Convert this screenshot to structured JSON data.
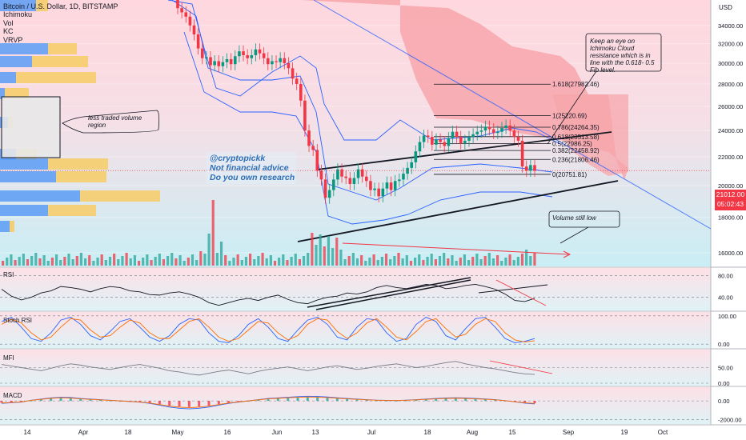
{
  "header": {
    "symbol_line": "Bitcoin / U.S. Dollar, 1D, BITSTAMP",
    "indicators": [
      "Ichimoku",
      "Vol",
      "KC",
      "VRVP"
    ]
  },
  "watermark": {
    "lines": [
      "@cryptopickk",
      "Not financial advice",
      "Do you own research"
    ]
  },
  "notes": {
    "cloud_note": "Keep an eye on Ichimoku Cloud resistance which is in line with the 0.618- 0.5 Fib level.",
    "volume_region_note": "less traded volume region",
    "volume_low_note": "Volume still low"
  },
  "price_badge": {
    "price": "21012.00",
    "countdown": "05:02:43"
  },
  "colors": {
    "up": "#26a69a",
    "down": "#f23645",
    "bull_candle": "#089981",
    "bear_candle": "#f23645",
    "kc_line": "#2962ff",
    "trend_line": "#131722",
    "cloud_bear": "#f7a6ab",
    "cloud_bull": "#a5dccd",
    "vrvp_up": "#5b9cf6",
    "vrvp_down": "#f5cd6c",
    "rsi_line": "#131722",
    "stoch_k": "#2962ff",
    "stoch_d": "#ff6d00",
    "macd_line": "#2962ff",
    "signal_line": "#ff6d00",
    "mfi_line": "#787b86"
  },
  "chart_data": [
    {
      "type": "line",
      "subtype": "candlestick",
      "title": "Bitcoin / U.S. Dollar, 1D, BITSTAMP",
      "y_unit": "USD",
      "y_scale": "log",
      "ylim": [
        15500,
        36500
      ],
      "y_ticks": [
        16000,
        18000,
        20000,
        22000,
        24000,
        26000,
        28000,
        30000,
        32000,
        34000
      ],
      "y_tick_labels": [
        "16000.00",
        "18000.00",
        "20000.00",
        "22000.00",
        "24000.00",
        "26000.00",
        "28000.00",
        "30000.00",
        "32000.00",
        "34000.00"
      ],
      "x_ticks": [
        "14",
        "Apr",
        "18",
        "May",
        "16",
        "Jun",
        "13",
        "Jul",
        "18",
        "Aug",
        "15",
        "Sep",
        "19",
        "Oct"
      ],
      "axis_unit_label": "USD",
      "candles_close": [
        36000,
        35500,
        35000,
        34000,
        33000,
        31500,
        30500,
        30600,
        29800,
        30200,
        29700,
        30100,
        30400,
        29900,
        30700,
        31200,
        30800,
        30500,
        30800,
        31400,
        31000,
        30500,
        29900,
        30200,
        30100,
        30500,
        30000,
        29500,
        28500,
        28000,
        26500,
        24000,
        22800,
        22500,
        21000,
        20400,
        19200,
        19700,
        20400,
        21100,
        20600,
        20500,
        20100,
        20500,
        21100,
        20600,
        20300,
        19700,
        19800,
        19300,
        19800,
        20200,
        19700,
        20300,
        20400,
        20800,
        21200,
        21600,
        22400,
        23100,
        23600,
        23500,
        22900,
        23300,
        23100,
        22800,
        23400,
        23900,
        23500,
        23000,
        23200,
        23500,
        23700,
        23900,
        24000,
        24300,
        24100,
        23800,
        23900,
        24200,
        24400,
        24000,
        23500,
        23200,
        21300,
        21000,
        21400,
        21000
      ],
      "candles_open": [
        37000,
        36000,
        35500,
        35000,
        34000,
        33000,
        31500,
        30500,
        30600,
        29800,
        30200,
        29700,
        30100,
        30400,
        29900,
        30700,
        31200,
        30800,
        30500,
        30800,
        31400,
        31000,
        30500,
        29900,
        30200,
        30100,
        30500,
        30000,
        29500,
        28500,
        28000,
        26500,
        24000,
        22800,
        22500,
        21000,
        20400,
        19200,
        19700,
        20400,
        21100,
        20600,
        20500,
        20100,
        20500,
        21100,
        20600,
        20300,
        19700,
        19800,
        19300,
        19800,
        20200,
        19700,
        20300,
        20400,
        20800,
        21200,
        21600,
        22400,
        23100,
        23600,
        23500,
        22900,
        23300,
        23100,
        22800,
        23400,
        23900,
        23500,
        23000,
        23200,
        23500,
        23700,
        23900,
        24000,
        24300,
        24100,
        23800,
        23900,
        24200,
        24400,
        24000,
        23500,
        23200,
        21300,
        21000,
        21400
      ],
      "fib_levels": [
        {
          "label": "1.618(27982.46)",
          "price": 27982.46
        },
        {
          "label": "1(25220.69)",
          "price": 25220.69
        },
        {
          "label": "0.786(24264.35)",
          "price": 24264.35
        },
        {
          "label": "0.618(23513.58)",
          "price": 23513.58
        },
        {
          "label": "0.5(22986.25)",
          "price": 22986.25
        },
        {
          "label": "0.382(22458.92)",
          "price": 22458.92
        },
        {
          "label": "0.236(21806.46)",
          "price": 21806.46
        },
        {
          "label": "0(20751.81)",
          "price": 20751.81
        }
      ],
      "last_price": 21012.0
    },
    {
      "type": "line",
      "title": "RSI",
      "ylim": [
        20,
        90
      ],
      "y_ticks": [
        40,
        80
      ],
      "y_tick_labels": [
        "40.00",
        "80.00"
      ],
      "series": [
        {
          "values": [
            55,
            42,
            35,
            40,
            48,
            52,
            60,
            58,
            55,
            50,
            56,
            60,
            58,
            52,
            50,
            45,
            44,
            48,
            50,
            46,
            40,
            30,
            25,
            30,
            35,
            38,
            34,
            40,
            44,
            36,
            30,
            28,
            35,
            40,
            42,
            48,
            46,
            50,
            58,
            62,
            58,
            56,
            60,
            64,
            62,
            56,
            58,
            62,
            64,
            60,
            55,
            46,
            34,
            32,
            38
          ]
        }
      ]
    },
    {
      "type": "line",
      "title": "Stoch RSI",
      "ylim": [
        -5,
        105
      ],
      "y_ticks": [
        0,
        100
      ],
      "y_tick_labels": [
        "0.00",
        "100.00"
      ],
      "series": [
        {
          "values": [
            80,
            95,
            60,
            20,
            10,
            40,
            85,
            95,
            70,
            30,
            15,
            45,
            80,
            90,
            60,
            25,
            10,
            30,
            70,
            90,
            85,
            40,
            10,
            5,
            30,
            70,
            90,
            60,
            20,
            10,
            50,
            85,
            95,
            70,
            25,
            15,
            60,
            90,
            85,
            40,
            10,
            20,
            70,
            95,
            80,
            30,
            15,
            55,
            90,
            95,
            60,
            20,
            5,
            10,
            20
          ]
        },
        {
          "values": [
            70,
            88,
            75,
            40,
            15,
            25,
            60,
            90,
            85,
            50,
            25,
            30,
            60,
            85,
            75,
            40,
            20,
            20,
            50,
            80,
            90,
            60,
            25,
            10,
            20,
            50,
            80,
            75,
            40,
            15,
            30,
            70,
            90,
            85,
            45,
            20,
            40,
            75,
            90,
            60,
            25,
            15,
            45,
            80,
            90,
            55,
            25,
            35,
            70,
            90,
            80,
            40,
            15,
            8,
            12
          ]
        }
      ]
    },
    {
      "type": "line",
      "title": "MFI",
      "ylim": [
        0,
        100
      ],
      "y_ticks": [
        0,
        50
      ],
      "y_tick_labels": [
        "0.00",
        "50.00"
      ],
      "series": [
        {
          "values": [
            60,
            55,
            50,
            45,
            40,
            48,
            56,
            62,
            58,
            52,
            48,
            44,
            50,
            56,
            60,
            54,
            48,
            40,
            36,
            30,
            26,
            32,
            38,
            42,
            36,
            30,
            38,
            44,
            48,
            52,
            46,
            40,
            46,
            52,
            56,
            50,
            44,
            48,
            54,
            58,
            62,
            56,
            50,
            54,
            60,
            66,
            70,
            62,
            56,
            50,
            46,
            40,
            34,
            30,
            28
          ]
        }
      ]
    },
    {
      "type": "bar",
      "title": "MACD",
      "ylim": [
        -2200,
        1200
      ],
      "y_ticks": [
        -2000,
        0
      ],
      "y_tick_labels": [
        "-2000.00",
        "0.00"
      ],
      "series": [
        {
          "name": "",
          "values": [
            -200,
            -150,
            -100,
            50,
            150,
            250,
            300,
            280,
            200,
            150,
            100,
            50,
            0,
            -50,
            -100,
            -200,
            -350,
            -500,
            -600,
            -650,
            -600,
            -500,
            -350,
            -200,
            -100,
            0,
            100,
            200,
            250,
            300,
            350,
            380,
            360,
            320,
            260,
            200,
            150,
            100,
            60,
            40,
            30,
            60,
            100,
            150,
            200,
            240,
            260,
            240,
            200,
            160,
            100,
            20,
            -80,
            -180,
            -250
          ]
        }
      ]
    }
  ]
}
